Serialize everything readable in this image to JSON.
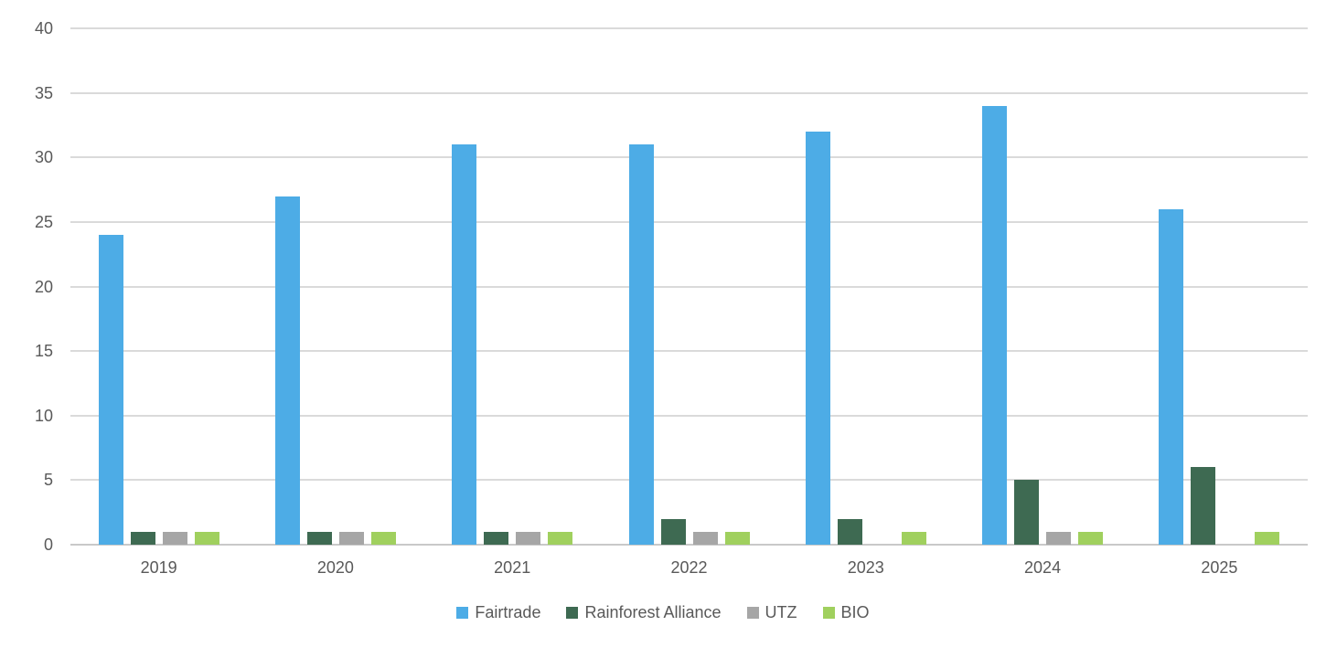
{
  "chart_data": {
    "type": "bar",
    "title": "",
    "xlabel": "",
    "ylabel": "",
    "categories": [
      "2019",
      "2020",
      "2021",
      "2022",
      "2023",
      "2024",
      "2025"
    ],
    "series": [
      {
        "name": "Fairtrade",
        "color": "#4DACE6",
        "values": [
          24,
          27,
          31,
          31,
          32,
          34,
          26
        ]
      },
      {
        "name": "Rainforest Alliance",
        "color": "#3E6A52",
        "values": [
          1,
          1,
          1,
          2,
          2,
          5,
          6
        ]
      },
      {
        "name": "UTZ",
        "color": "#A6A6A6",
        "values": [
          1,
          1,
          1,
          1,
          0,
          1,
          0
        ]
      },
      {
        "name": "BIO",
        "color": "#A0D05E",
        "values": [
          1,
          1,
          1,
          1,
          1,
          1,
          1
        ]
      }
    ],
    "ylim": [
      0,
      40
    ],
    "y_ticks": [
      0,
      5,
      10,
      15,
      20,
      25,
      30,
      35,
      40
    ],
    "grid": true,
    "legend_position": "bottom"
  },
  "colors": {
    "background": "#FFFFFF",
    "gridline": "#DADADA",
    "axis_baseline": "#C9C9C9",
    "text": "#595959"
  }
}
